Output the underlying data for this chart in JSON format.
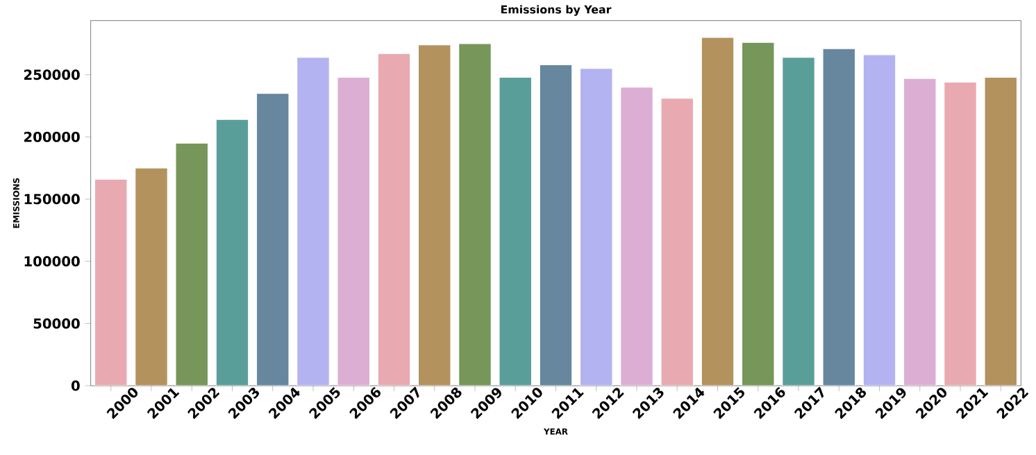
{
  "chart_data": {
    "type": "bar",
    "title": "Emissions by Year",
    "xlabel": "YEAR",
    "ylabel": "EMISSIONS",
    "categories": [
      "2000",
      "2001",
      "2002",
      "2003",
      "2004",
      "2005",
      "2006",
      "2007",
      "2008",
      "2009",
      "2010",
      "2011",
      "2012",
      "2013",
      "2014",
      "2015",
      "2016",
      "2017",
      "2018",
      "2019",
      "2020",
      "2021",
      "2022"
    ],
    "values": [
      166000,
      175000,
      195000,
      214000,
      235000,
      264000,
      248000,
      267000,
      274000,
      275000,
      248000,
      258000,
      255000,
      240000,
      231000,
      280000,
      276000,
      264000,
      271000,
      266000,
      247000,
      244000,
      248000
    ],
    "colors": [
      "#e8aab0",
      "#b3925e",
      "#76965a",
      "#5a9e9a",
      "#66879e",
      "#b3b3f2",
      "#ddaed4",
      "#e8aab0",
      "#b3925e",
      "#76965a",
      "#5a9e9a",
      "#66879e",
      "#b3b3f2",
      "#ddaed4",
      "#e8aab0",
      "#b3925e",
      "#76965a",
      "#5a9e9a",
      "#66879e",
      "#b3b3f2",
      "#ddaed4",
      "#e8aab0",
      "#b3925e"
    ],
    "ylim": [
      0,
      293500
    ],
    "yticks": [
      0,
      50000,
      100000,
      150000,
      200000,
      250000
    ]
  }
}
